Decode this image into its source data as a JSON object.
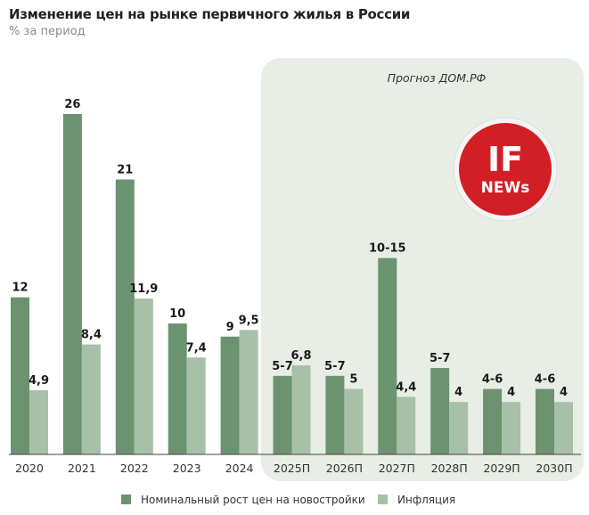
{
  "chart_data": {
    "type": "bar",
    "title": "Изменение цен на рынке первичного жилья в России",
    "subtitle": "% за период",
    "forecast_note": "Прогноз ДОМ.РФ",
    "categories": [
      "2020",
      "2021",
      "2022",
      "2023",
      "2024",
      "2025П",
      "2026П",
      "2027П",
      "2028П",
      "2029П",
      "2030П"
    ],
    "series": [
      {
        "name": "Номинальный рост цен на новостройки",
        "color": "#6b9370",
        "values": [
          12,
          26,
          21,
          10,
          9,
          6,
          6,
          15,
          6.6,
          5,
          5
        ],
        "labels": [
          "12",
          "26",
          "21",
          "10",
          "9",
          "5-7",
          "5-7",
          "10-15",
          "5-7",
          "4-6",
          "4-6"
        ]
      },
      {
        "name": "Инфляция",
        "color": "#a8bfa8",
        "values": [
          4.9,
          8.4,
          11.9,
          7.4,
          9.5,
          6.8,
          5,
          4.4,
          4,
          4,
          4
        ],
        "labels": [
          "4,9",
          "8,4",
          "11,9",
          "7,4",
          "9,5",
          "6,8",
          "5",
          "4,4",
          "4",
          "4",
          "4"
        ]
      }
    ],
    "ylim": [
      0,
      26
    ],
    "grid": false,
    "legend_position": "bottom",
    "forecast_panel_color": "#e8ede6"
  },
  "logo": {
    "line1": "IF",
    "line2": "NEWs",
    "color": "#d21f26"
  }
}
